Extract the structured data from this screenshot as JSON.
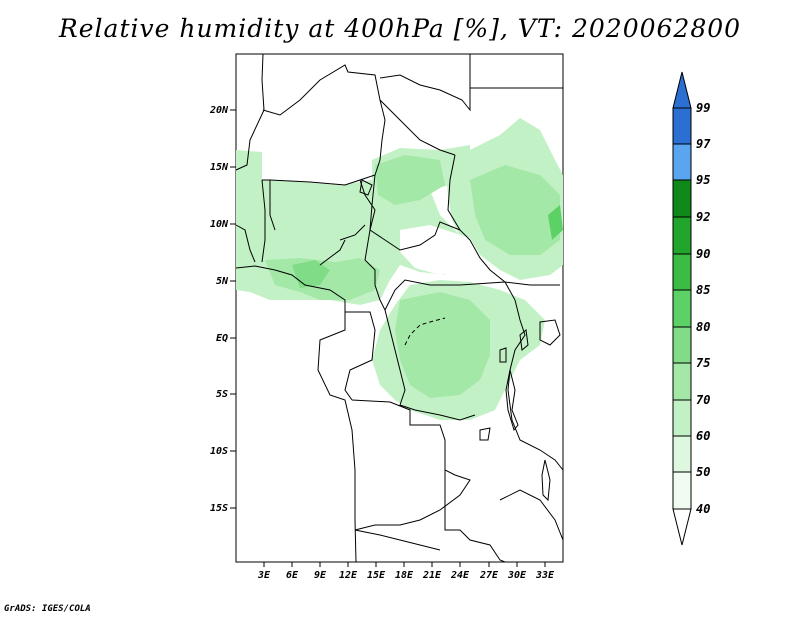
{
  "title": "Relative humidity at 400hPa [%], VT: 2020062800",
  "footer": "GrADS: IGES/COLA",
  "map": {
    "lat_labels": [
      "20N",
      "15N",
      "10N",
      "5N",
      "EQ",
      "5S",
      "10S",
      "15S"
    ],
    "lon_labels": [
      "3E",
      "6E",
      "9E",
      "12E",
      "15E",
      "18E",
      "21E",
      "24E",
      "27E",
      "30E",
      "33E"
    ],
    "field": "relative humidity",
    "level": "400hPa",
    "valid_time": "2020062800"
  },
  "colorbar": {
    "levels": [
      "99",
      "97",
      "95",
      "92",
      "90",
      "85",
      "80",
      "75",
      "70",
      "60",
      "50",
      "40"
    ],
    "colors": [
      "#2b6fd2",
      "#2b6fd2",
      "#5aa5f0",
      "#0f8a1a",
      "#22a52d",
      "#3cbc44",
      "#5cd165",
      "#80dc86",
      "#a4e8a8",
      "#c3f1c6",
      "#ddf8df",
      "#f0fcf0"
    ]
  }
}
